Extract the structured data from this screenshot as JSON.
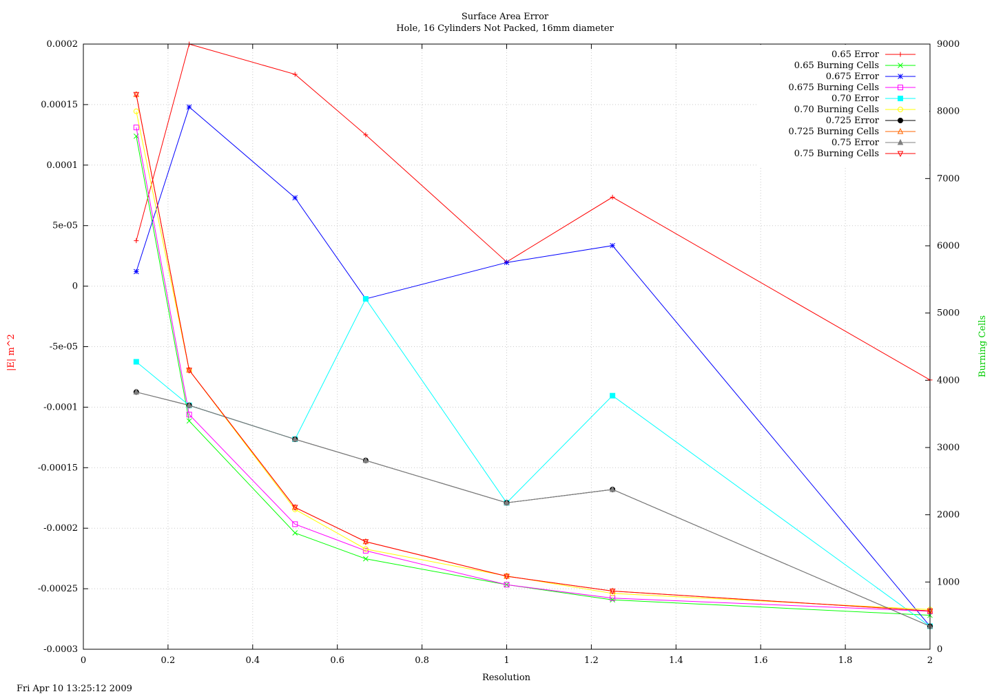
{
  "chart_data": {
    "type": "line",
    "title": "Surface Area Error",
    "subtitle": "Hole, 16 Cylinders Not Packed, 16mm diameter",
    "xlabel": "Resolution",
    "ylabel": "|E| m^2",
    "y2label": "Burning Cells",
    "xlim": [
      0,
      2
    ],
    "ylim": [
      -0.0003,
      0.0002
    ],
    "y2lim": [
      0,
      9000
    ],
    "x_ticks": [
      "0",
      "0.2",
      "0.4",
      "0.6",
      "0.8",
      "1",
      "1.2",
      "1.4",
      "1.6",
      "1.8",
      "2"
    ],
    "y_ticks": [
      "-0.0003",
      "-0.00025",
      "-0.0002",
      "-0.00015",
      "-0.0001",
      "-5e-05",
      "0",
      "5e-05",
      "0.0001",
      "0.00015",
      "0.0002"
    ],
    "y2_ticks": [
      "0",
      "1000",
      "2000",
      "3000",
      "4000",
      "5000",
      "6000",
      "7000",
      "8000",
      "9000"
    ],
    "grid": true,
    "legend_position": "top-right",
    "timestamp": "Fri Apr 10 13:25:12 2009",
    "x": [
      0.125,
      0.25,
      0.5,
      0.667,
      1,
      1.25,
      2
    ],
    "series": [
      {
        "name": "0.65 Error",
        "axis": "y1",
        "color": "#ff0000",
        "marker": "plus",
        "values": [
          3.75e-05,
          0.0002,
          0.000175,
          0.000125,
          2e-05,
          7.35e-05,
          -7.75e-05
        ]
      },
      {
        "name": "0.65 Burning Cells",
        "axis": "y2",
        "color": "#00ff00",
        "marker": "cross",
        "values": [
          7630,
          3395,
          1730,
          1345,
          960,
          735,
          505
        ]
      },
      {
        "name": "0.675 Error",
        "axis": "y1",
        "color": "#0000ff",
        "marker": "star",
        "values": [
          1.2e-05,
          0.000148,
          7.3e-05,
          -1.05e-05,
          1.95e-05,
          3.35e-05,
          -0.000281
        ]
      },
      {
        "name": "0.675 Burning Cells",
        "axis": "y2",
        "color": "#ff00ff",
        "marker": "square",
        "values": [
          7760,
          3490,
          1860,
          1465,
          960,
          760,
          565
        ]
      },
      {
        "name": "0.70 Error",
        "axis": "y1",
        "color": "#00ffff",
        "marker": "filled-square",
        "values": [
          -6.25e-05,
          -9.85e-05,
          -0.0001265,
          -1.05e-05,
          -0.000179,
          -9.05e-05,
          -0.000281
        ]
      },
      {
        "name": "0.70 Burning Cells",
        "axis": "y2",
        "color": "#ffff00",
        "marker": "circle",
        "values": [
          8000,
          4150,
          2080,
          1490,
          1090,
          830,
          590
        ]
      },
      {
        "name": "0.725 Error",
        "axis": "y1",
        "color": "#000000",
        "marker": "filled-circle",
        "values": [
          -8.75e-05,
          -9.85e-05,
          -0.0001265,
          -0.000144,
          -0.000179,
          -0.000168,
          -0.000281
        ]
      },
      {
        "name": "0.725 Burning Cells",
        "axis": "y2",
        "color": "#ff6600",
        "marker": "triangle",
        "values": [
          8250,
          4150,
          2110,
          1600,
          1085,
          865,
          570
        ]
      },
      {
        "name": "0.75 Error",
        "axis": "y1",
        "color": "#808080",
        "marker": "filled-triangle",
        "values": [
          -8.75e-05,
          -9.85e-05,
          -0.0001265,
          -0.000144,
          -0.000179,
          -0.000168,
          -0.000281
        ]
      },
      {
        "name": "0.75 Burning Cells",
        "axis": "y2",
        "color": "#ff0000",
        "marker": "triangle-down",
        "values": [
          8250,
          4150,
          2110,
          1600,
          1085,
          865,
          570
        ]
      }
    ]
  }
}
